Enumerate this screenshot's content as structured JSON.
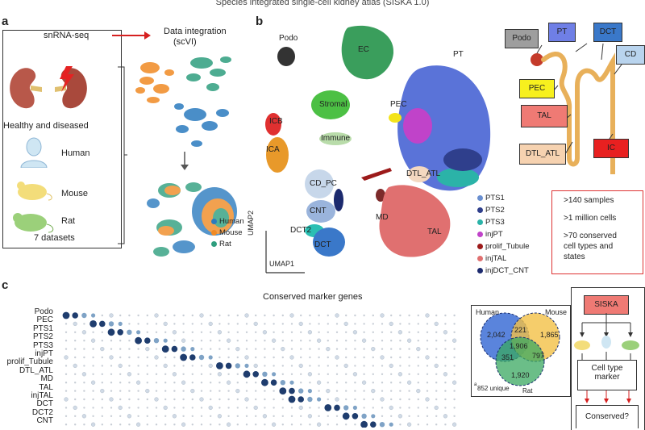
{
  "title": "Species integrated single-cell kidney atlas (SISKA 1.0)",
  "panel_a": {
    "letter": "a",
    "method": "snRNA-seq",
    "integration_line1": "Data integration",
    "integration_line2": "(scVI)",
    "healthy": "Healthy and diseased",
    "species": [
      "Human",
      "Mouse",
      "Rat"
    ],
    "datasets": "7 datasets",
    "legend": [
      {
        "label": "Human",
        "color": "#2b7bbf"
      },
      {
        "label": "Mouse",
        "color": "#f08a24"
      },
      {
        "label": "Rat",
        "color": "#2e9e7e"
      }
    ]
  },
  "panel_b": {
    "letter": "b",
    "clusters": [
      "Podo",
      "EC",
      "PT",
      "Stromal",
      "PEC",
      "ICB",
      "Immune",
      "ICA",
      "DTL_ATL",
      "CD_PC",
      "CNT",
      "MD",
      "TAL",
      "DCT2",
      "DCT"
    ],
    "axis_y": "UMAP2",
    "axis_x": "UMAP1",
    "legend": [
      {
        "label": "PTS1",
        "color": "#6a8fd0"
      },
      {
        "label": "PTS2",
        "color": "#2f3f8c"
      },
      {
        "label": "PTS3",
        "color": "#2bb3a8"
      },
      {
        "label": "injPT",
        "color": "#c043c9"
      },
      {
        "label": "prolif_Tubule",
        "color": "#9c1a1a"
      },
      {
        "label": "injTAL",
        "color": "#e07070"
      },
      {
        "label": "injDCT_CNT",
        "color": "#1c2a6e"
      }
    ],
    "anatomy": [
      {
        "label": "Podo",
        "bg": "#9e9e9e"
      },
      {
        "label": "PT",
        "bg": "#6f7fe6"
      },
      {
        "label": "DCT",
        "bg": "#3a78c9"
      },
      {
        "label": "CD",
        "bg": "#b9d4ee"
      },
      {
        "label": "PEC",
        "bg": "#f7f01e"
      },
      {
        "label": "TAL",
        "bg": "#ef7a74"
      },
      {
        "label": "DTL_ATL",
        "bg": "#f6d2b0"
      },
      {
        "label": "IC",
        "bg": "#e82020"
      }
    ],
    "stats": [
      ">140 samples",
      ">1 million cells",
      ">70 conserved",
      "cell types and",
      "states"
    ]
  },
  "panel_c": {
    "letter": "c",
    "title": "Conserved marker genes",
    "rows": [
      "Podo",
      "PEC",
      "PTS1",
      "PTS2",
      "PTS3",
      "injPT",
      "prolif_Tubule",
      "DTL_ATL",
      "MD",
      "TAL",
      "injTAL",
      "DCT",
      "DCT2",
      "CNT"
    ],
    "venn": {
      "human": "Human",
      "mouse": "Mouse",
      "rat": "Rat",
      "values": {
        "human_only": "2,042",
        "mouse_only": "1,865",
        "rat_only": "1,920",
        "hm": "221",
        "hr": "351",
        "mr": "797",
        "all": "1,906"
      },
      "footnote": "852 unique",
      "footnote_mark": "a"
    },
    "flow": {
      "siska": "SISKA",
      "marker_line1": "Cell type",
      "marker_line2": "marker",
      "conserved": "Conserved?"
    }
  }
}
